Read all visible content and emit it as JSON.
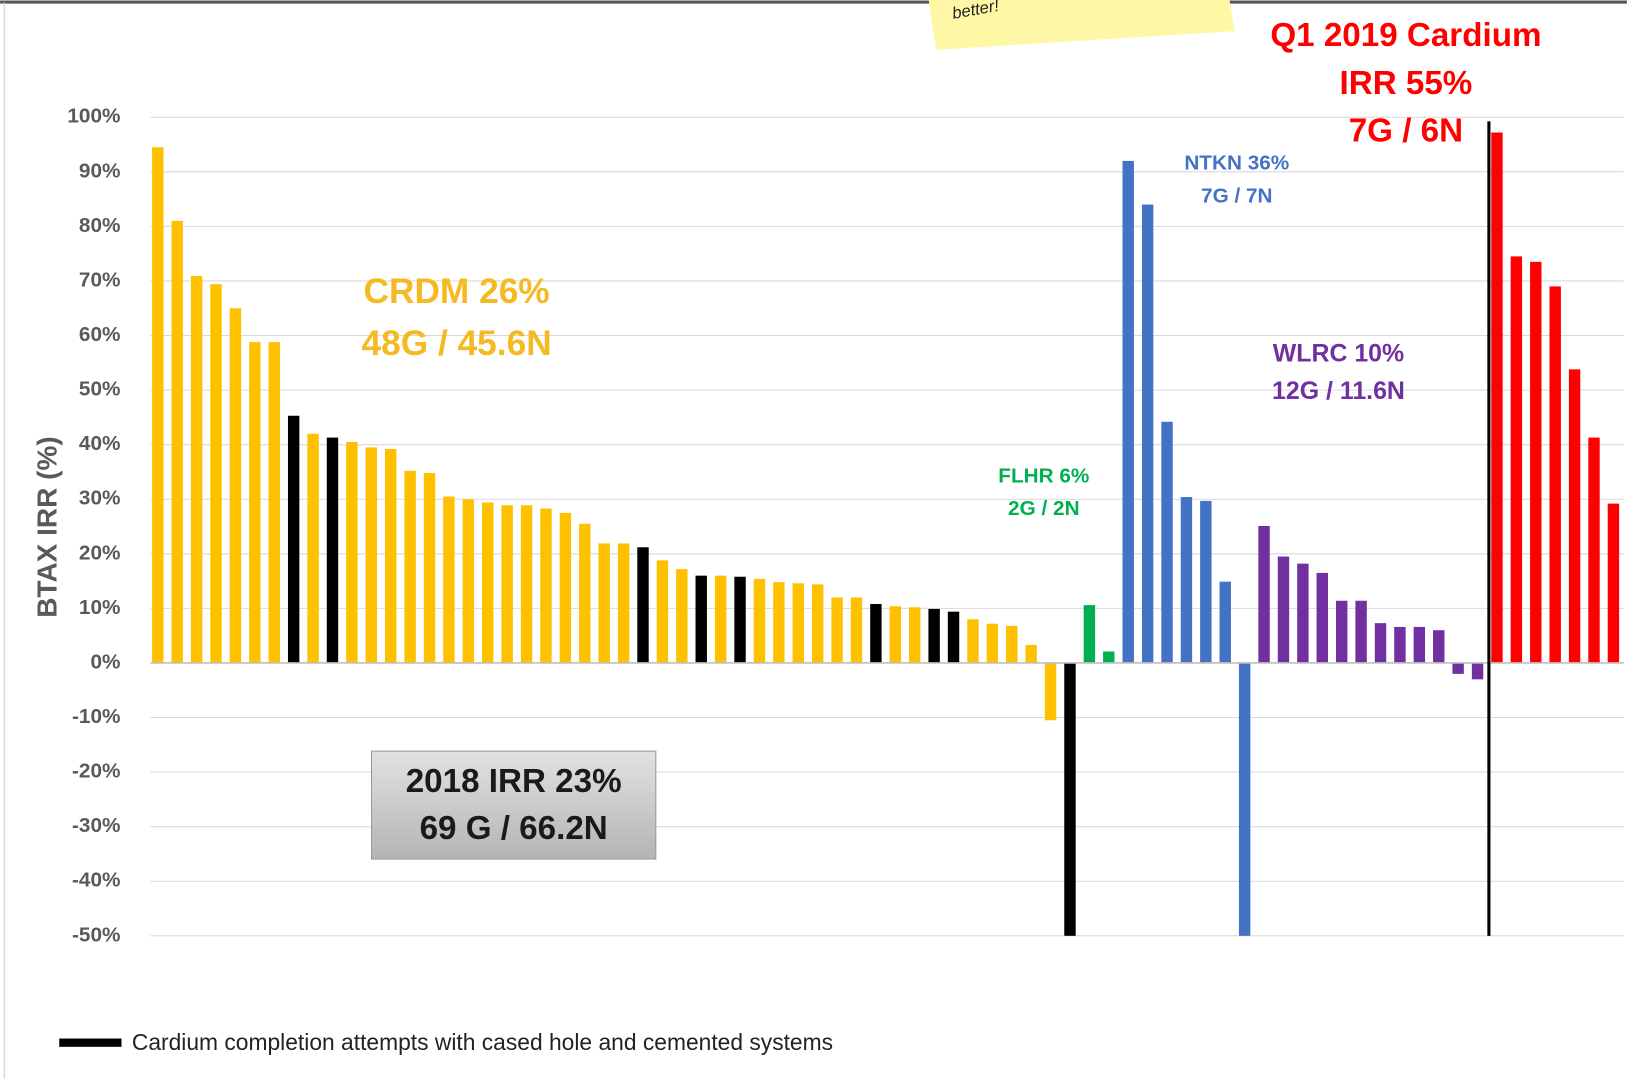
{
  "chart_data": {
    "type": "bar",
    "y_label": "BTAX IRR (%)",
    "ylim": [
      -50,
      100
    ],
    "yticks": [
      {
        "value": -50,
        "label": "-50%"
      },
      {
        "value": -40,
        "label": "-40%"
      },
      {
        "value": -30,
        "label": "-30%"
      },
      {
        "value": -20,
        "label": "-20%"
      },
      {
        "value": -10,
        "label": "-10%"
      },
      {
        "value": 0,
        "label": "0%"
      },
      {
        "value": 10,
        "label": "10%"
      },
      {
        "value": 20,
        "label": "20%"
      },
      {
        "value": 30,
        "label": "30%"
      },
      {
        "value": 40,
        "label": "40%"
      },
      {
        "value": 50,
        "label": "50%"
      },
      {
        "value": 60,
        "label": "60%"
      },
      {
        "value": 70,
        "label": "70%"
      },
      {
        "value": 80,
        "label": "80%"
      },
      {
        "value": 90,
        "label": "90%"
      },
      {
        "value": 100,
        "label": "100%"
      }
    ],
    "grid": true,
    "values": [
      94.5,
      81,
      70.9,
      69.4,
      65,
      58.8,
      58.8,
      45.3,
      42,
      41.3,
      40.5,
      39.5,
      39.2,
      35.2,
      34.8,
      30.5,
      30,
      29.4,
      28.9,
      28.9,
      28.3,
      27.5,
      25.5,
      21.9,
      21.9,
      21.2,
      18.8,
      17.2,
      16,
      16,
      15.8,
      15.4,
      14.8,
      14.6,
      14.4,
      12,
      12,
      10.8,
      10.4,
      10.2,
      9.9,
      9.4,
      8,
      7.2,
      6.8,
      3.3,
      -10.5,
      -50,
      10.6,
      2.1,
      92,
      84,
      44.2,
      30.4,
      29.7,
      14.9,
      -50,
      25.1,
      19.5,
      18.2,
      16.5,
      11.4,
      11.4,
      7.3,
      6.6,
      6.6,
      6,
      -2,
      -3,
      97.2,
      74.5,
      73.5,
      69,
      53.8,
      41.3,
      29.2
    ],
    "colors": [
      "#ffc000",
      "#ffc000",
      "#ffc000",
      "#ffc000",
      "#ffc000",
      "#ffc000",
      "#ffc000",
      "#000000",
      "#ffc000",
      "#000000",
      "#ffc000",
      "#ffc000",
      "#ffc000",
      "#ffc000",
      "#ffc000",
      "#ffc000",
      "#ffc000",
      "#ffc000",
      "#ffc000",
      "#ffc000",
      "#ffc000",
      "#ffc000",
      "#ffc000",
      "#ffc000",
      "#ffc000",
      "#000000",
      "#ffc000",
      "#ffc000",
      "#000000",
      "#ffc000",
      "#000000",
      "#ffc000",
      "#ffc000",
      "#ffc000",
      "#ffc000",
      "#ffc000",
      "#ffc000",
      "#000000",
      "#ffc000",
      "#ffc000",
      "#000000",
      "#000000",
      "#ffc000",
      "#ffc000",
      "#ffc000",
      "#ffc000",
      "#ffc000",
      "#000000",
      "#00b050",
      "#00b050",
      "#4472c4",
      "#4472c4",
      "#4472c4",
      "#4472c4",
      "#4472c4",
      "#4472c4",
      "#4472c4",
      "#7030a0",
      "#7030a0",
      "#7030a0",
      "#7030a0",
      "#7030a0",
      "#7030a0",
      "#7030a0",
      "#7030a0",
      "#7030a0",
      "#7030a0",
      "#7030a0",
      "#7030a0",
      "#ff0000",
      "#ff0000",
      "#ff0000",
      "#ff0000",
      "#ff0000",
      "#ff0000",
      "#ff0000"
    ],
    "annotations": [
      {
        "lines": [
          "CRDM 26%",
          "48G / 45.6N"
        ],
        "color": "#f5b921"
      },
      {
        "lines": [
          "NTKN 36%",
          "7G / 7N"
        ],
        "color": "#4472c4"
      },
      {
        "lines": [
          "FLHR 6%",
          "2G / 2N"
        ],
        "color": "#00b050"
      },
      {
        "lines": [
          "WLRC 10%",
          "12G / 11.6N"
        ],
        "color": "#7030a0"
      },
      {
        "lines": [
          "Q1 2019 Cardium",
          "IRR 55%",
          "7G / 6N"
        ],
        "color": "#ff0000"
      },
      {
        "lines": [
          "2018 IRR 23%",
          "69 G / 66.2N"
        ],
        "color": "#1a1a1a"
      }
    ],
    "note": "better!",
    "legend": {
      "label": "Cardium completion attempts with cased hole and cemented systems",
      "color": "#000000"
    }
  }
}
